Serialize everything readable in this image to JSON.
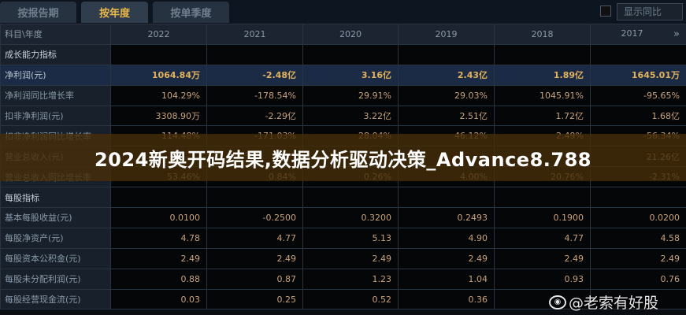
{
  "tabs": [
    {
      "label": "按报告期",
      "active": false
    },
    {
      "label": "按年度",
      "active": true
    },
    {
      "label": "按单季度",
      "active": false
    }
  ],
  "yoy_toggle": {
    "label": "显示同比",
    "checked": false
  },
  "header": {
    "label": "科目\\年度",
    "years": [
      "2022",
      "2021",
      "2020",
      "2019",
      "2018",
      "2017"
    ],
    "more_icon": "»"
  },
  "rows": [
    {
      "label": "成长能力指标",
      "type": "section",
      "values": [
        "",
        "",
        "",
        "",
        "",
        ""
      ]
    },
    {
      "label": "净利润(元)",
      "type": "highlight",
      "values": [
        "1064.84万",
        "-2.48亿",
        "3.16亿",
        "2.43亿",
        "1.89亿",
        "1645.01万"
      ]
    },
    {
      "label": "净利润同比增长率",
      "type": "normal",
      "values": [
        "104.29%",
        "-178.54%",
        "29.91%",
        "29.03%",
        "1045.91%",
        "-95.65%"
      ]
    },
    {
      "label": "扣非净利润(元)",
      "type": "normal",
      "values": [
        "3308.90万",
        "-2.29亿",
        "3.22亿",
        "2.51亿",
        "1.72亿",
        "1.68亿"
      ]
    },
    {
      "label": "扣非净利润同比增长率",
      "type": "normal",
      "values": [
        "114.48%",
        "-171.03%",
        "28.04%",
        "46.12%",
        "2.49%",
        "-56.34%"
      ]
    },
    {
      "label": "营业总收入(元)",
      "type": "normal",
      "values": [
        "",
        "",
        "",
        "",
        "",
        "21.26亿"
      ]
    },
    {
      "label": "营业总收入同比增长率",
      "type": "normal",
      "values": [
        "53.46%",
        "0.84%",
        "0.26%",
        "4.00%",
        "20.76%",
        "-2.31%"
      ]
    },
    {
      "label": "每股指标",
      "type": "section",
      "values": [
        "",
        "",
        "",
        "",
        "",
        ""
      ]
    },
    {
      "label": "基本每股收益(元)",
      "type": "normal",
      "values": [
        "0.0100",
        "-0.2500",
        "0.3200",
        "0.2493",
        "0.1900",
        "0.0200"
      ]
    },
    {
      "label": "每股净资产(元)",
      "type": "normal",
      "values": [
        "4.78",
        "4.77",
        "5.13",
        "4.90",
        "4.77",
        "4.58"
      ]
    },
    {
      "label": "每股资本公积金(元)",
      "type": "normal",
      "values": [
        "2.49",
        "2.49",
        "2.49",
        "2.49",
        "2.49",
        "2.49"
      ]
    },
    {
      "label": "每股未分配利润(元)",
      "type": "normal",
      "values": [
        "0.88",
        "0.87",
        "1.23",
        "1.04",
        "0.93",
        "0.76"
      ]
    },
    {
      "label": "每股经营现金流(元)",
      "type": "normal",
      "values": [
        "0.03",
        "0.25",
        "0.52",
        "0.36",
        "",
        ""
      ]
    }
  ],
  "banner": "2024新奥开码结果,数据分析驱动决策_Advance8.788",
  "watermark": "@老索有好股",
  "colors": {
    "accent": "#e8b64a",
    "value": "#c9a27a",
    "highlight_row": "#1c2b45"
  }
}
